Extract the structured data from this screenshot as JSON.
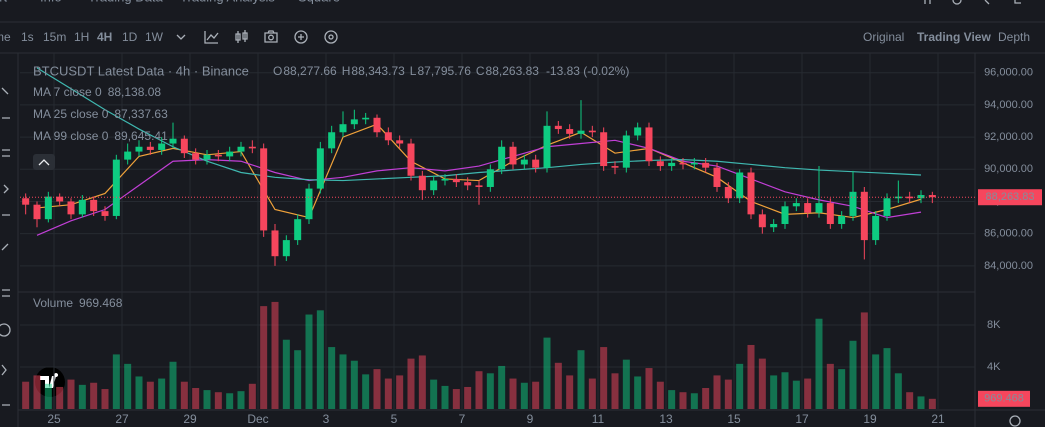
{
  "tabs": [
    "art",
    "Info",
    "Trading Data",
    "Trading Analysis",
    "Square"
  ],
  "toolbar": {
    "intervals": [
      "me",
      "1s",
      "15m",
      "1H",
      "4H",
      "1D",
      "1W"
    ],
    "active_interval": "4H",
    "views": [
      "Original",
      "Trading View",
      "Depth"
    ],
    "active_view": "Trading View"
  },
  "chart_data": {
    "type": "candlestick",
    "title": "BTCUSDT Latest Data · 4h · Binance",
    "ohlc_readout": [
      {
        "label": "O",
        "value": "88,277.66"
      },
      {
        "label": "H",
        "value": "88,343.73"
      },
      {
        "label": "L",
        "value": "87,795.76"
      },
      {
        "label": "C",
        "value": "88,263.83"
      }
    ],
    "change": "-13.83 (-0.02%)",
    "up_color": "#0ecb81",
    "down_color": "#f6465d",
    "open": [
      88200,
      87800,
      86900,
      88300,
      88000,
      87200,
      88100,
      87400,
      87100,
      90600,
      91100,
      91400,
      91200,
      91600,
      91900,
      91000,
      90600,
      90900,
      90800,
      91100,
      91400,
      91300,
      86200,
      84600,
      85600,
      86900,
      88800,
      91300,
      92300,
      92800,
      93100,
      93200,
      92300,
      91800,
      91600,
      89600,
      88700,
      89300,
      89400,
      89200,
      89000,
      88900,
      90000,
      91400,
      90300,
      90600,
      90100,
      92700,
      92500,
      92200,
      92400,
      92300,
      90200,
      90100,
      92100,
      92600,
      90500,
      90200,
      90400,
      90300,
      90400,
      90100,
      88900,
      88200,
      89800,
      87200,
      86400,
      86600,
      87700,
      87900,
      87300,
      87900,
      86600,
      87100,
      88600,
      85600,
      87100,
      88200,
      88300,
      88200,
      88400
    ],
    "high": [
      88500,
      88000,
      88600,
      88500,
      88200,
      88400,
      88300,
      87700,
      90900,
      91600,
      91800,
      91700,
      92000,
      92900,
      92100,
      91300,
      91200,
      91200,
      91400,
      91700,
      91800,
      91600,
      86600,
      85900,
      87200,
      89100,
      91700,
      92700,
      93600,
      93700,
      93500,
      93400,
      92600,
      92100,
      91900,
      89900,
      89600,
      89700,
      89700,
      89500,
      89300,
      90300,
      91800,
      91700,
      90900,
      90900,
      93600,
      93000,
      92800,
      94300,
      92700,
      92600,
      90500,
      92400,
      92900,
      92900,
      90800,
      90700,
      90700,
      90700,
      90700,
      90400,
      89200,
      90000,
      90100,
      87500,
      86900,
      88000,
      88200,
      88200,
      90200,
      88200,
      87400,
      89900,
      88900,
      87400,
      88500,
      89300,
      88600,
      88700,
      88600
    ],
    "low": [
      87200,
      86400,
      86700,
      87700,
      86900,
      87000,
      87100,
      86800,
      86900,
      90300,
      90800,
      90900,
      90900,
      91300,
      90700,
      90300,
      90300,
      90500,
      90500,
      90800,
      91000,
      85800,
      84000,
      84300,
      85300,
      86600,
      88500,
      91000,
      92000,
      92500,
      92800,
      92000,
      91500,
      91300,
      89300,
      88100,
      88400,
      89000,
      88900,
      88700,
      87800,
      88600,
      89700,
      90000,
      90000,
      89800,
      89800,
      92200,
      91900,
      91900,
      92000,
      89900,
      89700,
      89800,
      91800,
      90200,
      89900,
      89900,
      90000,
      90000,
      89800,
      88600,
      87900,
      87900,
      86900,
      86000,
      86100,
      86300,
      87400,
      87000,
      87000,
      86300,
      86300,
      86800,
      84400,
      85300,
      86800,
      87900,
      87900,
      87900,
      87900
    ],
    "close": [
      87800,
      86900,
      88300,
      88000,
      87200,
      88100,
      87400,
      87100,
      90600,
      91100,
      91400,
      91200,
      91600,
      91900,
      91000,
      90600,
      90900,
      90800,
      91100,
      91400,
      91300,
      86200,
      84600,
      85600,
      86900,
      88800,
      91300,
      92300,
      92800,
      93100,
      93200,
      92300,
      91800,
      91600,
      89600,
      88700,
      89300,
      89400,
      89200,
      89000,
      88900,
      90000,
      91400,
      90300,
      90600,
      90100,
      92700,
      92500,
      92200,
      92400,
      92300,
      90200,
      90100,
      92100,
      92600,
      90500,
      90200,
      90400,
      90300,
      90400,
      90100,
      88900,
      88200,
      89800,
      87200,
      86400,
      86600,
      87700,
      87900,
      87300,
      87900,
      86600,
      87100,
      88600,
      85600,
      87100,
      88200,
      88300,
      88200,
      88400,
      88263.83
    ],
    "last_price_label": "88,263.83",
    "moving_averages": [
      {
        "name": "MA 7 close 0",
        "color": "#f0a23a",
        "value_label": "88,138.08",
        "values": [
          87600,
          87800,
          88500,
          90800,
          91300,
          90900,
          91100,
          87500,
          87000,
          92000,
          92800,
          90500,
          89400,
          89300,
          90500,
          91500,
          92300,
          91000,
          91300,
          90400,
          89500,
          88000,
          87200,
          87300,
          87000,
          87500,
          88138.08
        ]
      },
      {
        "name": "MA 25 close 0",
        "color": "#c13fd6",
        "value_label": "87,337.63",
        "values": [
          85900,
          86800,
          87500,
          89000,
          90500,
          90600,
          90500,
          89800,
          89300,
          89500,
          89900,
          90100,
          89900,
          90200,
          90800,
          91400,
          91600,
          91800,
          91300,
          90500,
          90200,
          89400,
          88600,
          88100,
          87700,
          87000,
          87337.63
        ]
      },
      {
        "name": "MA 99 close 0",
        "color": "#3fb8b0",
        "value_label": "89,645.41",
        "values": [
          96300,
          95000,
          93700,
          92500,
          91400,
          90500,
          89800,
          89500,
          89350,
          89300,
          89400,
          89500,
          89600,
          89800,
          89950,
          90100,
          90300,
          90450,
          90550,
          90600,
          90500,
          90300,
          90100,
          89950,
          89850,
          89750,
          89645.41
        ]
      }
    ],
    "volume_title": "Volume",
    "volume": [
      2600,
      3200,
      2400,
      2100,
      2800,
      2300,
      2500,
      1900,
      5200,
      4300,
      3100,
      2600,
      2900,
      4500,
      2600,
      2000,
      1800,
      1600,
      1500,
      1700,
      2400,
      9800,
      10200,
      6600,
      5600,
      9000,
      9400,
      5900,
      5200,
      4600,
      3300,
      3800,
      2900,
      3200,
      4800,
      5100,
      2800,
      2200,
      1900,
      2100,
      3600,
      3400,
      4100,
      2900,
      2500,
      2600,
      6800,
      4400,
      3200,
      5600,
      2900,
      5900,
      3400,
      4700,
      3100,
      3900,
      2600,
      1800,
      1600,
      1500,
      2000,
      3200,
      2800,
      4300,
      6100,
      4800,
      3200,
      3500,
      2700,
      2900,
      8600,
      4300,
      3800,
      6500,
      9200,
      5200,
      5800,
      3400,
      1600,
      1200,
      969.468
    ],
    "x_labels": [
      "25",
      "27",
      "29",
      "Dec",
      "3",
      "5",
      "7",
      "9",
      "11",
      "13",
      "15",
      "17",
      "19",
      "21"
    ],
    "ylim": [
      82500,
      97100
    ],
    "yticks": [
      {
        "value": 84000,
        "label": "84,000.00"
      },
      {
        "value": 86000,
        "label": "86,000.00"
      },
      {
        "value": 88000,
        "label": "88,000.00"
      },
      {
        "value": 90000,
        "label": "90,000.00"
      },
      {
        "value": 92000,
        "label": "92,000.00"
      },
      {
        "value": 94000,
        "label": "94,000.00"
      },
      {
        "value": 96000,
        "label": "96,000.00"
      }
    ],
    "volume_ylim": [
      0,
      10860
    ],
    "volume_yticks": [
      {
        "value": 4000,
        "label": "4K"
      },
      {
        "value": 8000,
        "label": "8K"
      }
    ],
    "grid": true
  }
}
